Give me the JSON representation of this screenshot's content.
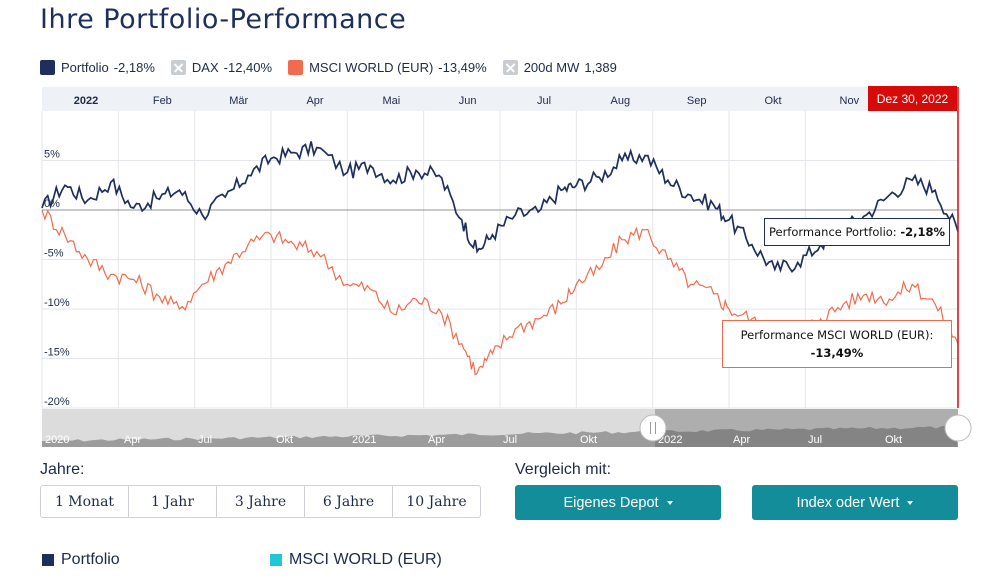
{
  "title": "Ihre Portfolio-Performance",
  "legend": [
    {
      "label": "Portfolio",
      "value": "-2,18%",
      "color": "#1e2f5e",
      "icon": "square-swatch",
      "active": true
    },
    {
      "label": "DAX",
      "value": "-12,40%",
      "color": "#c9cdd2",
      "icon": "cross-box-icon",
      "active": false
    },
    {
      "label": "MSCI WORLD (EUR)",
      "value": "-13,49%",
      "color": "#f26b4c",
      "icon": "square-swatch",
      "active": true
    },
    {
      "label": "200d MW",
      "value": "1,389",
      "color": "#c9cdd2",
      "icon": "cross-box-icon",
      "active": false
    }
  ],
  "date_flag": "Dez 30, 2022",
  "tooltip_portfolio": {
    "label": "Performance Portfolio:",
    "value": "-2,18%"
  },
  "tooltip_msci": {
    "label": "Performance MSCI WORLD (EUR):",
    "value": "-13,49%"
  },
  "chart_data": {
    "type": "line",
    "x_ticks": [
      "2022",
      "Feb",
      "Mär",
      "Apr",
      "Mai",
      "Jun",
      "Jul",
      "Aug",
      "Sep",
      "Okt",
      "Nov"
    ],
    "y_ticks": [
      "5%",
      "0%",
      "-5%",
      "-10%",
      "-15%",
      "-20%"
    ],
    "y_tick_values": [
      5,
      0,
      -5,
      -10,
      -15,
      -20
    ],
    "ylim": [
      -20,
      10
    ],
    "xlim": [
      0,
      12
    ],
    "grid": true,
    "legend_position": "top-left",
    "series": [
      {
        "name": "Portfolio",
        "color": "#1e2f5e",
        "x": [
          0,
          0.3,
          0.6,
          0.9,
          1.2,
          1.5,
          1.8,
          2.1,
          2.4,
          2.7,
          3.0,
          3.3,
          3.6,
          4.0,
          4.3,
          4.6,
          4.9,
          5.2,
          5.5,
          5.7,
          5.9,
          6.2,
          6.5,
          6.8,
          7.0,
          7.3,
          7.6,
          7.9,
          8.2,
          8.5,
          8.8,
          9.0,
          9.3,
          9.6,
          9.9,
          10.2,
          10.5,
          10.8,
          11.1,
          11.4,
          11.7,
          12.0
        ],
        "y": [
          0.2,
          2.5,
          1.0,
          2.8,
          0.2,
          1.2,
          2.0,
          -0.5,
          1.3,
          3.5,
          5.2,
          5.8,
          6.3,
          3.8,
          4.5,
          3.0,
          4.0,
          3.5,
          -1.0,
          -4.2,
          -2.5,
          -0.5,
          -0.2,
          2.0,
          2.5,
          3.3,
          5.0,
          5.5,
          3.0,
          1.5,
          0.5,
          -1.0,
          -3.5,
          -6.0,
          -5.3,
          -3.5,
          -1.8,
          -0.5,
          1.5,
          3.0,
          2.0,
          -2.18
        ]
      },
      {
        "name": "MSCI WORLD (EUR)",
        "color": "#f26b4c",
        "x": [
          0,
          0.3,
          0.6,
          0.9,
          1.2,
          1.5,
          1.8,
          2.1,
          2.4,
          2.7,
          3.0,
          3.3,
          3.6,
          4.0,
          4.3,
          4.6,
          4.9,
          5.2,
          5.5,
          5.7,
          5.9,
          6.2,
          6.5,
          6.8,
          7.0,
          7.3,
          7.6,
          7.9,
          8.2,
          8.5,
          8.8,
          9.0,
          9.3,
          9.6,
          9.9,
          10.2,
          10.5,
          10.8,
          11.1,
          11.4,
          11.7,
          12.0
        ],
        "y": [
          0,
          -2.5,
          -5.0,
          -6.5,
          -7.0,
          -8.5,
          -10.0,
          -7.5,
          -5.5,
          -3.5,
          -2.5,
          -3.5,
          -4.2,
          -7.5,
          -8.0,
          -10.5,
          -9.0,
          -10.0,
          -13.5,
          -16.5,
          -14.5,
          -12.0,
          -11.0,
          -9.5,
          -7.5,
          -6.0,
          -3.0,
          -2.0,
          -5.0,
          -7.5,
          -8.5,
          -10.0,
          -11.0,
          -13.5,
          -12.5,
          -11.0,
          -9.5,
          -8.5,
          -9.0,
          -7.5,
          -9.5,
          -13.49
        ]
      }
    ]
  },
  "navigator": {
    "labels": [
      "2020",
      "Apr",
      "Jul",
      "Okt",
      "2021",
      "Apr",
      "Jul",
      "Okt",
      "2022",
      "Apr",
      "Jul",
      "Okt"
    ]
  },
  "controls": {
    "years_label": "Jahre:",
    "periods": [
      "1 Monat",
      "1 Jahr",
      "3 Jahre",
      "6 Jahre",
      "10 Jahre"
    ],
    "compare_label": "Vergleich mit:",
    "own_depot": "Eigenes Depot",
    "index_or_value": "Index oder Wert"
  },
  "bottom_legend": [
    {
      "label": "Portfolio",
      "color": "#1e2f5e"
    },
    {
      "label": "MSCI WORLD (EUR)",
      "color": "#1ec8dc"
    }
  ]
}
